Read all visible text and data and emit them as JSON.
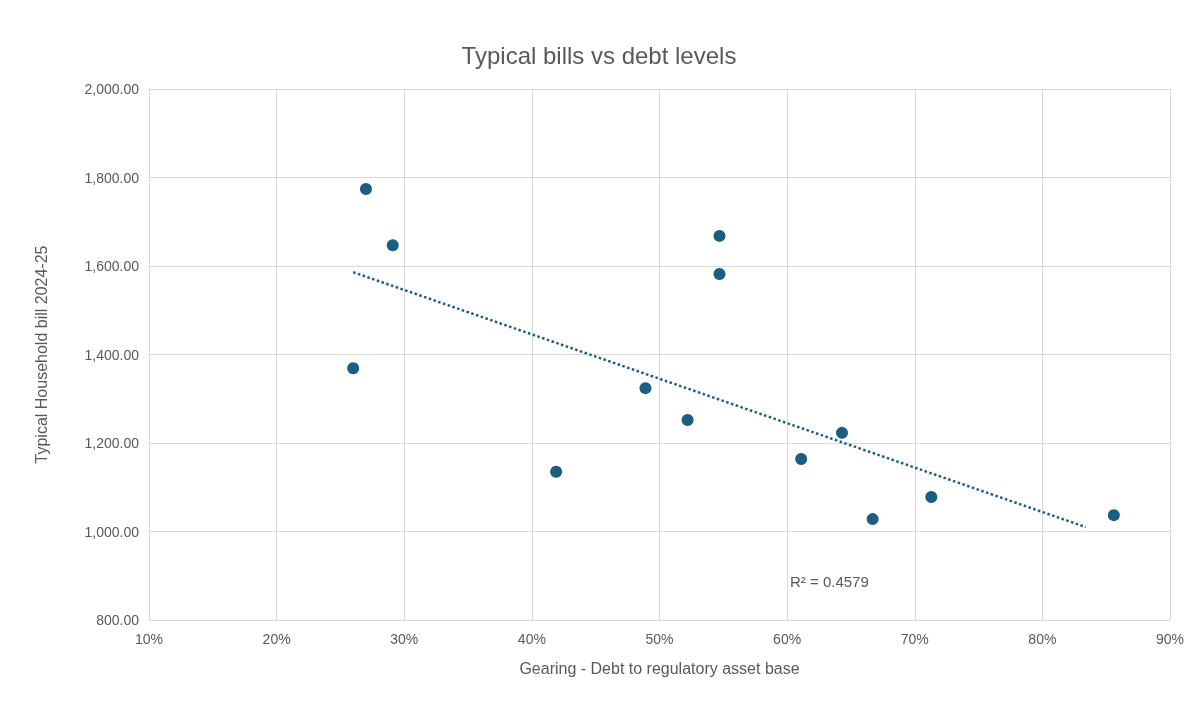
{
  "chart_data": {
    "type": "scatter",
    "title": "Typical bills vs debt levels",
    "xlabel": "Gearing - Debt to regulatory asset base",
    "ylabel": "Typical Household bill 2024-25",
    "series": [
      {
        "color": "#1b5e82",
        "x": [
          27.0,
          29.1,
          26.0,
          54.7,
          54.7,
          41.9,
          48.9,
          52.2,
          61.1,
          64.3,
          66.7,
          71.3,
          85.6
        ],
        "values": [
          1774,
          1647,
          1369,
          1668,
          1582,
          1135,
          1324,
          1252,
          1164,
          1223,
          1028,
          1078,
          1037
        ]
      },
      {
        "type": "line",
        "color": "#1b5e82",
        "line_style": "dotted",
        "marker": "none",
        "x": [
          26.0,
          83.4
        ],
        "values": [
          1586,
          1010
        ]
      }
    ],
    "xlim": [
      10,
      90
    ],
    "xticks": [
      {
        "value": 10,
        "label": "10%"
      },
      {
        "value": 20,
        "label": "20%"
      },
      {
        "value": 30,
        "label": "30%"
      },
      {
        "value": 40,
        "label": "40%"
      },
      {
        "value": 50,
        "label": "50%"
      },
      {
        "value": 60,
        "label": "60%"
      },
      {
        "value": 70,
        "label": "70%"
      },
      {
        "value": 80,
        "label": "80%"
      },
      {
        "value": 90,
        "label": "90%"
      }
    ],
    "ylim": [
      800,
      2000
    ],
    "yticks": [
      {
        "value": 800,
        "label": "800.00"
      },
      {
        "value": 1000,
        "label": "1,000.00"
      },
      {
        "value": 1200,
        "label": "1,200.00"
      },
      {
        "value": 1400,
        "label": "1,400.00"
      },
      {
        "value": 1600,
        "label": "1,600.00"
      },
      {
        "value": 1800,
        "label": "1,800.00"
      },
      {
        "value": 2000,
        "label": "2,000.00"
      }
    ],
    "annotations": [
      "R² = 0.4579"
    ],
    "grid": true,
    "marker": "circle"
  }
}
